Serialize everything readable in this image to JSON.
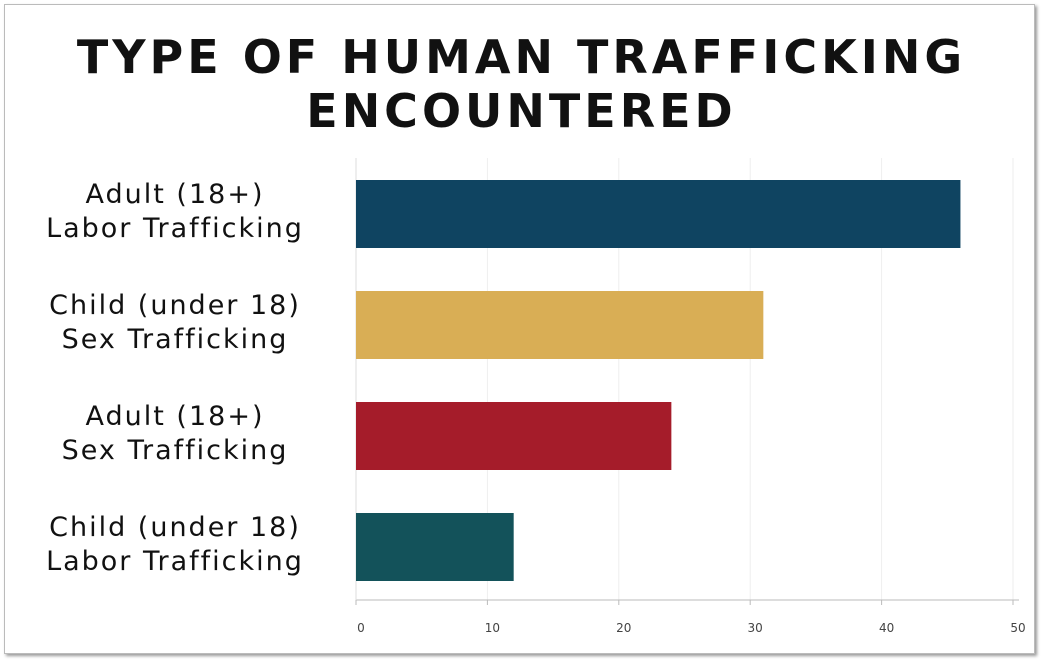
{
  "chart_data": {
    "type": "bar",
    "orientation": "horizontal",
    "title": "TYPE OF HUMAN TRAFFICKING\nENCOUNTERED",
    "categories": [
      "Adult (18+)\nLabor Trafficking",
      "Child (under 18)\nSex Trafficking",
      "Adult (18+)\nSex Trafficking",
      "Child (under 18)\nLabor Trafficking"
    ],
    "values": [
      46,
      31,
      24,
      12
    ],
    "colors": [
      "#0f4461",
      "#d9ae55",
      "#a51c2a",
      "#13525a"
    ],
    "xlim": [
      0,
      50
    ],
    "xticks": [
      0,
      10,
      20,
      30,
      40,
      50
    ],
    "grid": true
  }
}
